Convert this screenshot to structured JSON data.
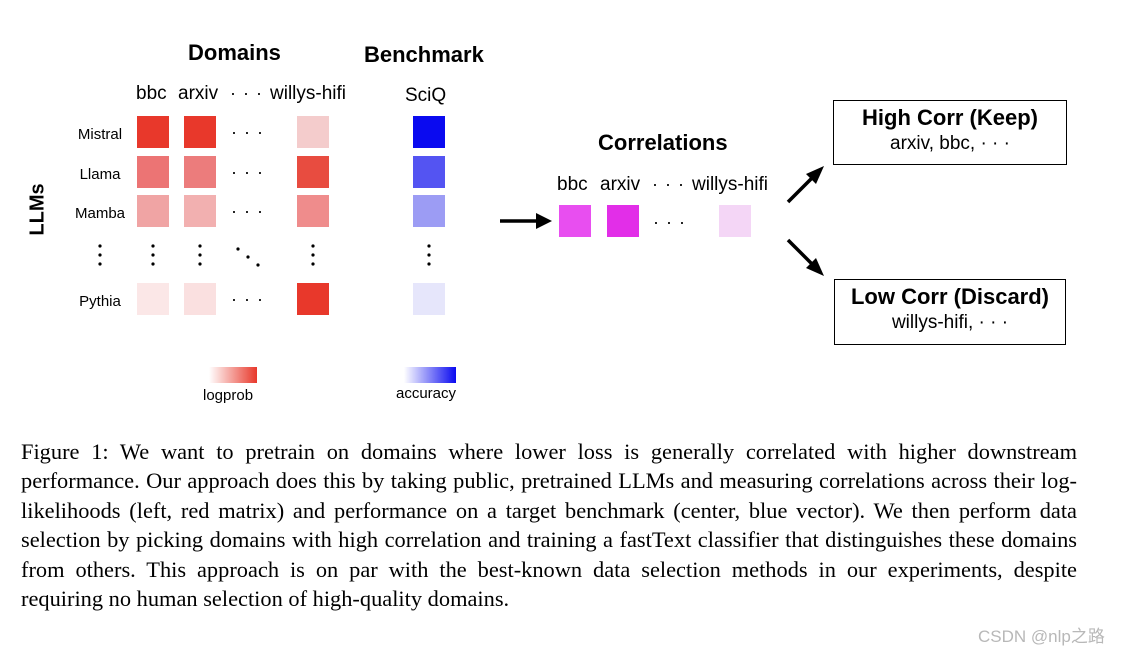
{
  "figure": {
    "domains_heading": "Domains",
    "benchmark_heading": "Benchmark",
    "llms_label": "LLMs",
    "domain_columns": [
      "bbc",
      "arxiv",
      "willys-hifi"
    ],
    "hdots": "· · ·",
    "benchmark_column": "SciQ",
    "models": [
      "Mistral",
      "Llama",
      "Mamba",
      "Pythia"
    ],
    "logprob_colors": [
      [
        "#e8382b",
        "#e8382b",
        "#f4cccc"
      ],
      [
        "#ec7474",
        "#ec7c7c",
        "#e84c40"
      ],
      [
        "#f0a4a4",
        "#f2b0b0",
        "#ef8c8c"
      ],
      [
        "#fbe7e7",
        "#fae0e0",
        "#e8382b"
      ]
    ],
    "accuracy_colors": [
      "#0a0af0",
      "#5454f2",
      "#9c9cf4",
      "#e6e6fb"
    ],
    "legend": {
      "logprob_label": "logprob",
      "accuracy_label": "accuracy"
    },
    "correlations": {
      "heading": "Correlations",
      "columns": [
        "bbc",
        "arxiv",
        "willys-hifi"
      ],
      "colors": [
        "#e84ef0",
        "#e22ee8",
        "#f4d6f6"
      ]
    },
    "high_corr": {
      "title": "High Corr (Keep)",
      "items": "arxiv, bbc, · · ·"
    },
    "low_corr": {
      "title": "Low Corr (Discard)",
      "items": "willys-hifi, · · ·"
    }
  },
  "caption": "Figure 1:  We want to pretrain on domains where lower loss is generally correlated with higher downstream performance. Our approach does this by taking public, pretrained LLMs and measuring correlations across their log-likelihoods (left, red matrix) and performance on a target benchmark (center, blue vector).  We then perform data selection by picking domains with high correlation and training a fastText classifier that distinguishes these domains from others. This approach is on par with the best-known data selection methods in our experiments, despite requiring no human selection of high-quality domains.",
  "watermark": "CSDN @nlp之路"
}
